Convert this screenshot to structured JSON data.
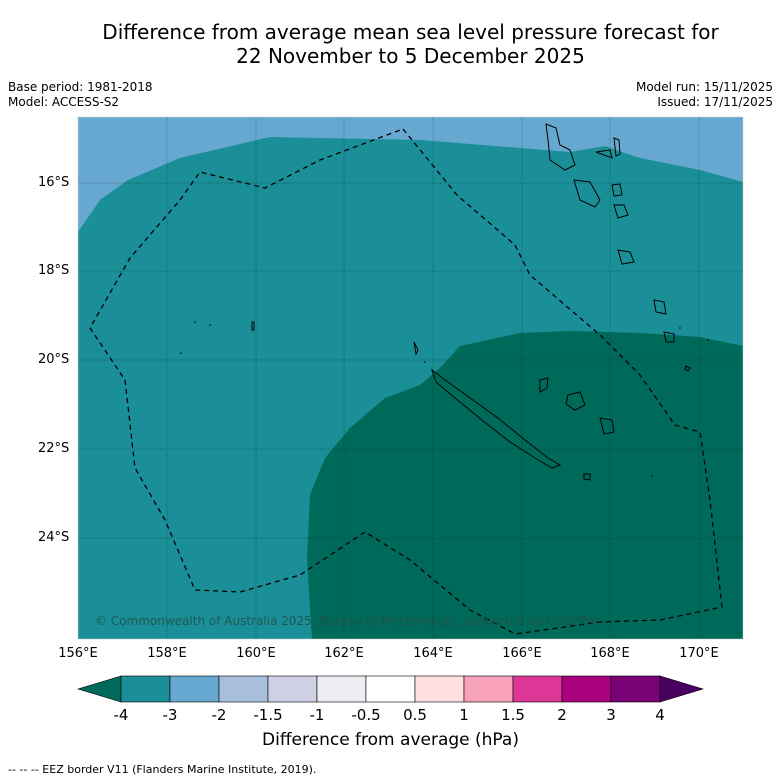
{
  "title_line1": "Difference from average mean sea level pressure forecast for",
  "title_line2": "22 November to 5 December 2025",
  "base_period": "Base period: 1981-2018",
  "model": "Model: ACCESS-S2",
  "model_run": "Model run: 15/11/2025",
  "issued": "Issued: 17/11/2025",
  "copyright": "© Commonwealth of Australia 2025, Bureau of Meteorology, supported by COSPPac",
  "latitude_labels": [
    "16°S",
    "18°S",
    "20°S",
    "22°S",
    "24°S"
  ],
  "longitude_labels": [
    "156°E",
    "158°E",
    "160°E",
    "162°E",
    "164°E",
    "166°E",
    "168°E",
    "170°E"
  ],
  "colorbar": {
    "ticks": [
      "-4",
      "-3",
      "-2",
      "-1.5",
      "-1",
      "-0.5",
      "0.5",
      "1",
      "1.5",
      "2",
      "3",
      "4"
    ],
    "colors": [
      "#1b8f97",
      "#66a8cf",
      "#a9bedd",
      "#cfcfe6",
      "#ececf2",
      "#ffffff",
      "#ffe0e0",
      "#f7a1bb",
      "#dc3696",
      "#a8027d",
      "#7b0177"
    ],
    "under_color": "#006a5a",
    "over_color": "#4a0060",
    "label": "Difference from average (hPa)"
  },
  "legend_note": "--  --  -- EEZ border V11 (Flanders Marine Institute, 2019).",
  "map_colors": {
    "band_-2_-3": "#66a8cf",
    "band_-3_-4": "#1b8f97",
    "band_lt_-4": "#006a5a"
  }
}
